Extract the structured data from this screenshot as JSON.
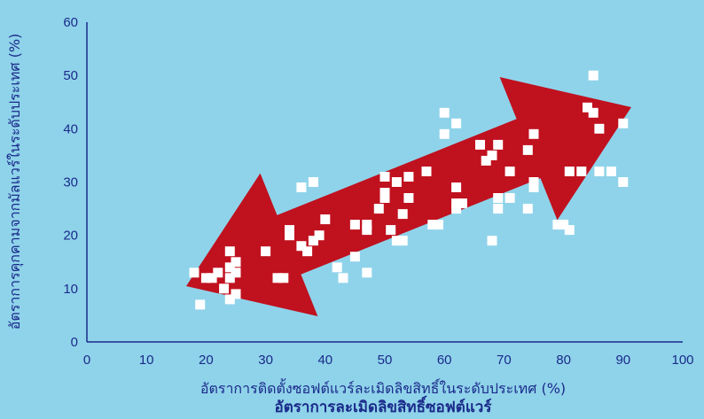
{
  "chart_data": {
    "type": "scatter",
    "xlabel": "อัตราการติดตั้งซอฟต์แวร์ละเมิดลิขสิทธิ์ในระดับประเทศ (%)",
    "ylabel": "อัตราการคุกคามจากมัลแวร์ในระดับประเทศ (%)",
    "caption": "อัตราการละเมิดลิขสิทธิ์ซอฟต์แวร์",
    "xlim": [
      0,
      100
    ],
    "ylim": [
      0,
      60
    ],
    "xticks": [
      "0",
      "10",
      "20",
      "30",
      "40",
      "50",
      "60",
      "70",
      "80",
      "90",
      "100"
    ],
    "yticks": [
      "0",
      "10",
      "20",
      "30",
      "40",
      "50",
      "60"
    ],
    "grid": false,
    "annotation": "double-headed-arrow",
    "colors": {
      "background": "#8fd3ea",
      "arrow": "#c0111f",
      "points": "#ffffff",
      "axis": "#1a2a8a"
    },
    "points": [
      [
        18,
        13
      ],
      [
        19,
        7
      ],
      [
        20,
        12
      ],
      [
        21,
        12
      ],
      [
        22,
        13
      ],
      [
        23,
        10
      ],
      [
        24,
        8
      ],
      [
        24,
        12
      ],
      [
        24,
        14
      ],
      [
        24,
        17
      ],
      [
        25,
        9
      ],
      [
        25,
        13
      ],
      [
        25,
        15
      ],
      [
        30,
        17
      ],
      [
        32,
        12
      ],
      [
        33,
        12
      ],
      [
        34,
        20
      ],
      [
        34,
        21
      ],
      [
        36,
        18
      ],
      [
        36,
        29
      ],
      [
        37,
        17
      ],
      [
        38,
        19
      ],
      [
        38,
        30
      ],
      [
        39,
        20
      ],
      [
        40,
        23
      ],
      [
        42,
        14
      ],
      [
        43,
        12
      ],
      [
        45,
        16
      ],
      [
        45,
        22
      ],
      [
        47,
        13
      ],
      [
        47,
        21
      ],
      [
        47,
        22
      ],
      [
        49,
        25
      ],
      [
        50,
        27
      ],
      [
        50,
        28
      ],
      [
        50,
        31
      ],
      [
        51,
        21
      ],
      [
        52,
        19
      ],
      [
        52,
        30
      ],
      [
        53,
        19
      ],
      [
        53,
        24
      ],
      [
        54,
        27
      ],
      [
        54,
        31
      ],
      [
        57,
        32
      ],
      [
        58,
        22
      ],
      [
        59,
        22
      ],
      [
        60,
        39
      ],
      [
        60,
        43
      ],
      [
        62,
        25
      ],
      [
        62,
        26
      ],
      [
        62,
        29
      ],
      [
        62,
        41
      ],
      [
        63,
        26
      ],
      [
        66,
        37
      ],
      [
        67,
        34
      ],
      [
        68,
        19
      ],
      [
        68,
        35
      ],
      [
        69,
        25
      ],
      [
        69,
        27
      ],
      [
        69,
        37
      ],
      [
        71,
        27
      ],
      [
        71,
        32
      ],
      [
        74,
        25
      ],
      [
        74,
        36
      ],
      [
        75,
        29
      ],
      [
        75,
        30
      ],
      [
        75,
        39
      ],
      [
        79,
        22
      ],
      [
        80,
        22
      ],
      [
        81,
        21
      ],
      [
        81,
        32
      ],
      [
        83,
        32
      ],
      [
        84,
        44
      ],
      [
        85,
        43
      ],
      [
        85,
        50
      ],
      [
        86,
        32
      ],
      [
        86,
        40
      ],
      [
        88,
        32
      ],
      [
        90,
        30
      ],
      [
        90,
        41
      ]
    ]
  }
}
